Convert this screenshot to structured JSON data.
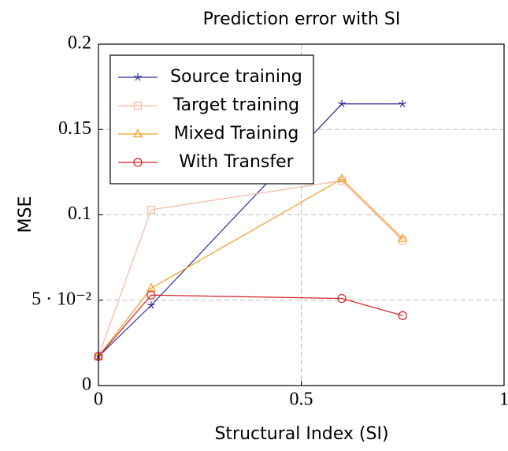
{
  "chart_data": {
    "type": "line",
    "title": "Prediction error with SI",
    "x_label": "Structural Index (SI)",
    "y_label": "MSE",
    "x": [
      0,
      0.13,
      0.6,
      0.75
    ],
    "series": [
      {
        "name": "Source training",
        "color": "#2e2e9a",
        "marker": "star",
        "values": [
          0.017,
          0.047,
          0.165,
          0.165
        ]
      },
      {
        "name": "Target training",
        "color": "#f7b8a0",
        "marker": "square",
        "values": [
          0.017,
          0.103,
          0.12,
          0.085
        ]
      },
      {
        "name": "Mixed Training",
        "color": "#f39c1f",
        "marker": "triangle",
        "values": [
          0.017,
          0.057,
          0.121,
          0.086
        ]
      },
      {
        "name": "With Transfer",
        "color": "#d42020",
        "marker": "circle",
        "values": [
          0.017,
          0.053,
          0.051,
          0.041
        ]
      }
    ],
    "xlim": [
      0,
      1
    ],
    "ylim": [
      0,
      0.2
    ],
    "xticks": [
      0,
      0.5,
      1
    ],
    "yticks": [
      0,
      {
        "value": 0.05,
        "label": "5 · 10⁻²"
      },
      0.1,
      0.15,
      0.2
    ],
    "grid": true,
    "legend": "upper left"
  }
}
